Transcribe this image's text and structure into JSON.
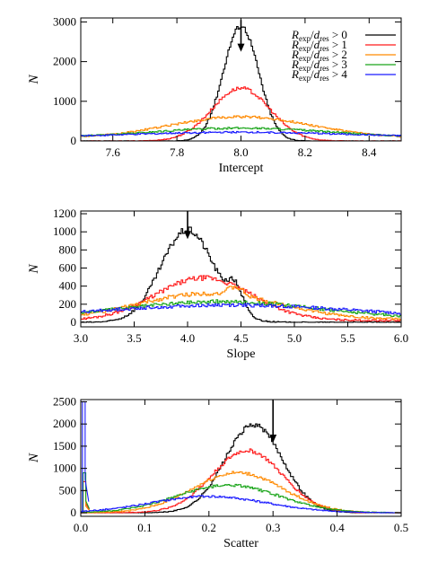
{
  "colors": {
    "axis": "#000000",
    "black": "#000000",
    "red": "#ff1a1a",
    "orange": "#ff8a00",
    "green": "#1aa51a",
    "blue": "#1a1aff"
  },
  "chart_data": [
    {
      "type": "line",
      "xlabel": "Intercept",
      "ylabel": "N",
      "xlim": [
        7.5,
        8.5
      ],
      "ylim": [
        0,
        3100
      ],
      "xticks": [
        7.6,
        7.8,
        8.0,
        8.2,
        8.4
      ],
      "yticks": [
        0,
        1000,
        2000,
        3000
      ],
      "arrow": {
        "x": 8.0,
        "from": 3050,
        "to": 2250
      },
      "legend_position": "top-right",
      "series": [
        {
          "name": "R_exp/d_res > 0",
          "color": "black",
          "kind": "gauss",
          "mu": 8.0,
          "sigma": 0.055,
          "amp": 2900,
          "base": 0
        },
        {
          "name": "R_exp/d_res > 1",
          "color": "red",
          "kind": "gauss",
          "mu": 8.0,
          "sigma": 0.09,
          "amp": 1330,
          "base": 0
        },
        {
          "name": "R_exp/d_res > 2",
          "color": "orange",
          "kind": "gauss",
          "mu": 8.0,
          "sigma": 0.22,
          "amp": 540,
          "base": 70
        },
        {
          "name": "R_exp/d_res > 3",
          "color": "green",
          "kind": "gauss",
          "mu": 8.0,
          "sigma": 0.28,
          "amp": 250,
          "base": 75
        },
        {
          "name": "R_exp/d_res > 4",
          "color": "blue",
          "kind": "gauss",
          "mu": 8.0,
          "sigma": 0.35,
          "amp": 140,
          "base": 80
        }
      ]
    },
    {
      "type": "line",
      "xlabel": "Slope",
      "ylabel": "N",
      "xlim": [
        3.0,
        6.0
      ],
      "ylim": [
        -50,
        1230
      ],
      "xticks": [
        3.0,
        3.5,
        4.0,
        4.5,
        5.0,
        5.5,
        6.0
      ],
      "yticks": [
        0,
        200,
        400,
        600,
        800,
        1000,
        1200
      ],
      "arrow": {
        "x": 4.0,
        "from": 1230,
        "to": 920
      },
      "series": [
        {
          "color": "black",
          "kind": "gauss",
          "mu": 4.0,
          "sigma": 0.25,
          "amp": 1020,
          "base": 0,
          "bump": {
            "mu": 4.45,
            "sigma": 0.07,
            "amp": 250
          }
        },
        {
          "color": "red",
          "kind": "gauss",
          "mu": 4.15,
          "sigma": 0.45,
          "amp": 470,
          "base": 20
        },
        {
          "color": "orange",
          "kind": "gauss",
          "mu": 4.2,
          "sigma": 0.65,
          "amp": 290,
          "base": 30,
          "bump": {
            "mu": 4.45,
            "sigma": 0.07,
            "amp": 90
          }
        },
        {
          "color": "green",
          "kind": "gauss",
          "mu": 4.3,
          "sigma": 0.9,
          "amp": 190,
          "base": 40
        },
        {
          "color": "blue",
          "kind": "gauss",
          "mu": 4.4,
          "sigma": 1.2,
          "amp": 150,
          "base": 40
        }
      ]
    },
    {
      "type": "line",
      "xlabel": "Scatter",
      "ylabel": "N",
      "xlim": [
        0.0,
        0.5
      ],
      "ylim": [
        -80,
        2550
      ],
      "xticks": [
        0.0,
        0.1,
        0.2,
        0.3,
        0.4,
        0.5
      ],
      "yticks": [
        0,
        500,
        1000,
        1500,
        2000,
        2500
      ],
      "arrow": {
        "x": 0.3,
        "from": 2550,
        "to": 1580
      },
      "series": [
        {
          "color": "black",
          "kind": "gauss",
          "mu": 0.27,
          "sigma": 0.045,
          "amp": 1980,
          "base": 0
        },
        {
          "color": "red",
          "kind": "gauss",
          "mu": 0.26,
          "sigma": 0.055,
          "amp": 1400,
          "base": 0,
          "spike": {
            "x": 0.005,
            "amp": 700
          }
        },
        {
          "color": "orange",
          "kind": "gauss",
          "mu": 0.245,
          "sigma": 0.07,
          "amp": 900,
          "base": 0,
          "spike": {
            "x": 0.005,
            "amp": 500
          }
        },
        {
          "color": "green",
          "kind": "gauss",
          "mu": 0.23,
          "sigma": 0.08,
          "amp": 620,
          "base": 0,
          "spike": {
            "x": 0.005,
            "amp": 900
          }
        },
        {
          "color": "blue",
          "kind": "gauss",
          "mu": 0.2,
          "sigma": 0.09,
          "amp": 370,
          "base": 0,
          "spike": {
            "x": 0.004,
            "amp": 2500
          }
        }
      ]
    }
  ],
  "legend": {
    "entries": [
      {
        "num": "R",
        "sub1": "exp",
        "den": "d",
        "sub2": "res",
        "rel": "> 0",
        "color": "black"
      },
      {
        "num": "R",
        "sub1": "exp",
        "den": "d",
        "sub2": "res",
        "rel": "> 1",
        "color": "red"
      },
      {
        "num": "R",
        "sub1": "exp",
        "den": "d",
        "sub2": "res",
        "rel": "> 2",
        "color": "orange"
      },
      {
        "num": "R",
        "sub1": "exp",
        "den": "d",
        "sub2": "res",
        "rel": "> 3",
        "color": "green"
      },
      {
        "num": "R",
        "sub1": "exp",
        "den": "d",
        "sub2": "res",
        "rel": "> 4",
        "color": "blue"
      }
    ]
  }
}
